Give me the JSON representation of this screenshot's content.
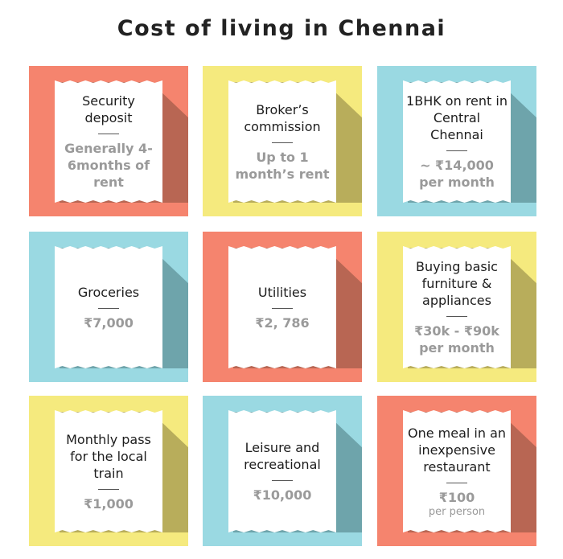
{
  "title": "Cost of living in Chennai",
  "colors": {
    "coral": "#f5846e",
    "yellow": "#f5ea7e",
    "blue": "#9ad9e2",
    "coral_shadow": "#b86653",
    "yellow_shadow": "#b8ad5b",
    "blue_shadow": "#6ea4ab"
  },
  "tiles": [
    {
      "label": "Security deposit",
      "value": "Generally 4-6months of rent",
      "sub": "",
      "color": "coral"
    },
    {
      "label": "Broker’s commission",
      "value": "Up to 1 month’s rent",
      "sub": "",
      "color": "yellow"
    },
    {
      "label": "1BHK on rent in Central Chennai",
      "value": "~ ₹14,000 per month",
      "sub": "",
      "color": "blue"
    },
    {
      "label": "Groceries",
      "value": "₹7,000",
      "sub": "",
      "color": "blue"
    },
    {
      "label": "Utilities",
      "value": "₹2, 786",
      "sub": "",
      "color": "coral"
    },
    {
      "label": "Buying basic furniture & appliances",
      "value": "₹30k - ₹90k per month",
      "sub": "",
      "color": "yellow"
    },
    {
      "label": "Monthly pass for the local train",
      "value": "₹1,000",
      "sub": "",
      "color": "yellow"
    },
    {
      "label": "Leisure and recreational",
      "value": "₹10,000",
      "sub": "",
      "color": "blue"
    },
    {
      "label": "One meal in an inexpensive restaurant",
      "value": "₹100",
      "sub": "per person",
      "color": "coral"
    }
  ]
}
